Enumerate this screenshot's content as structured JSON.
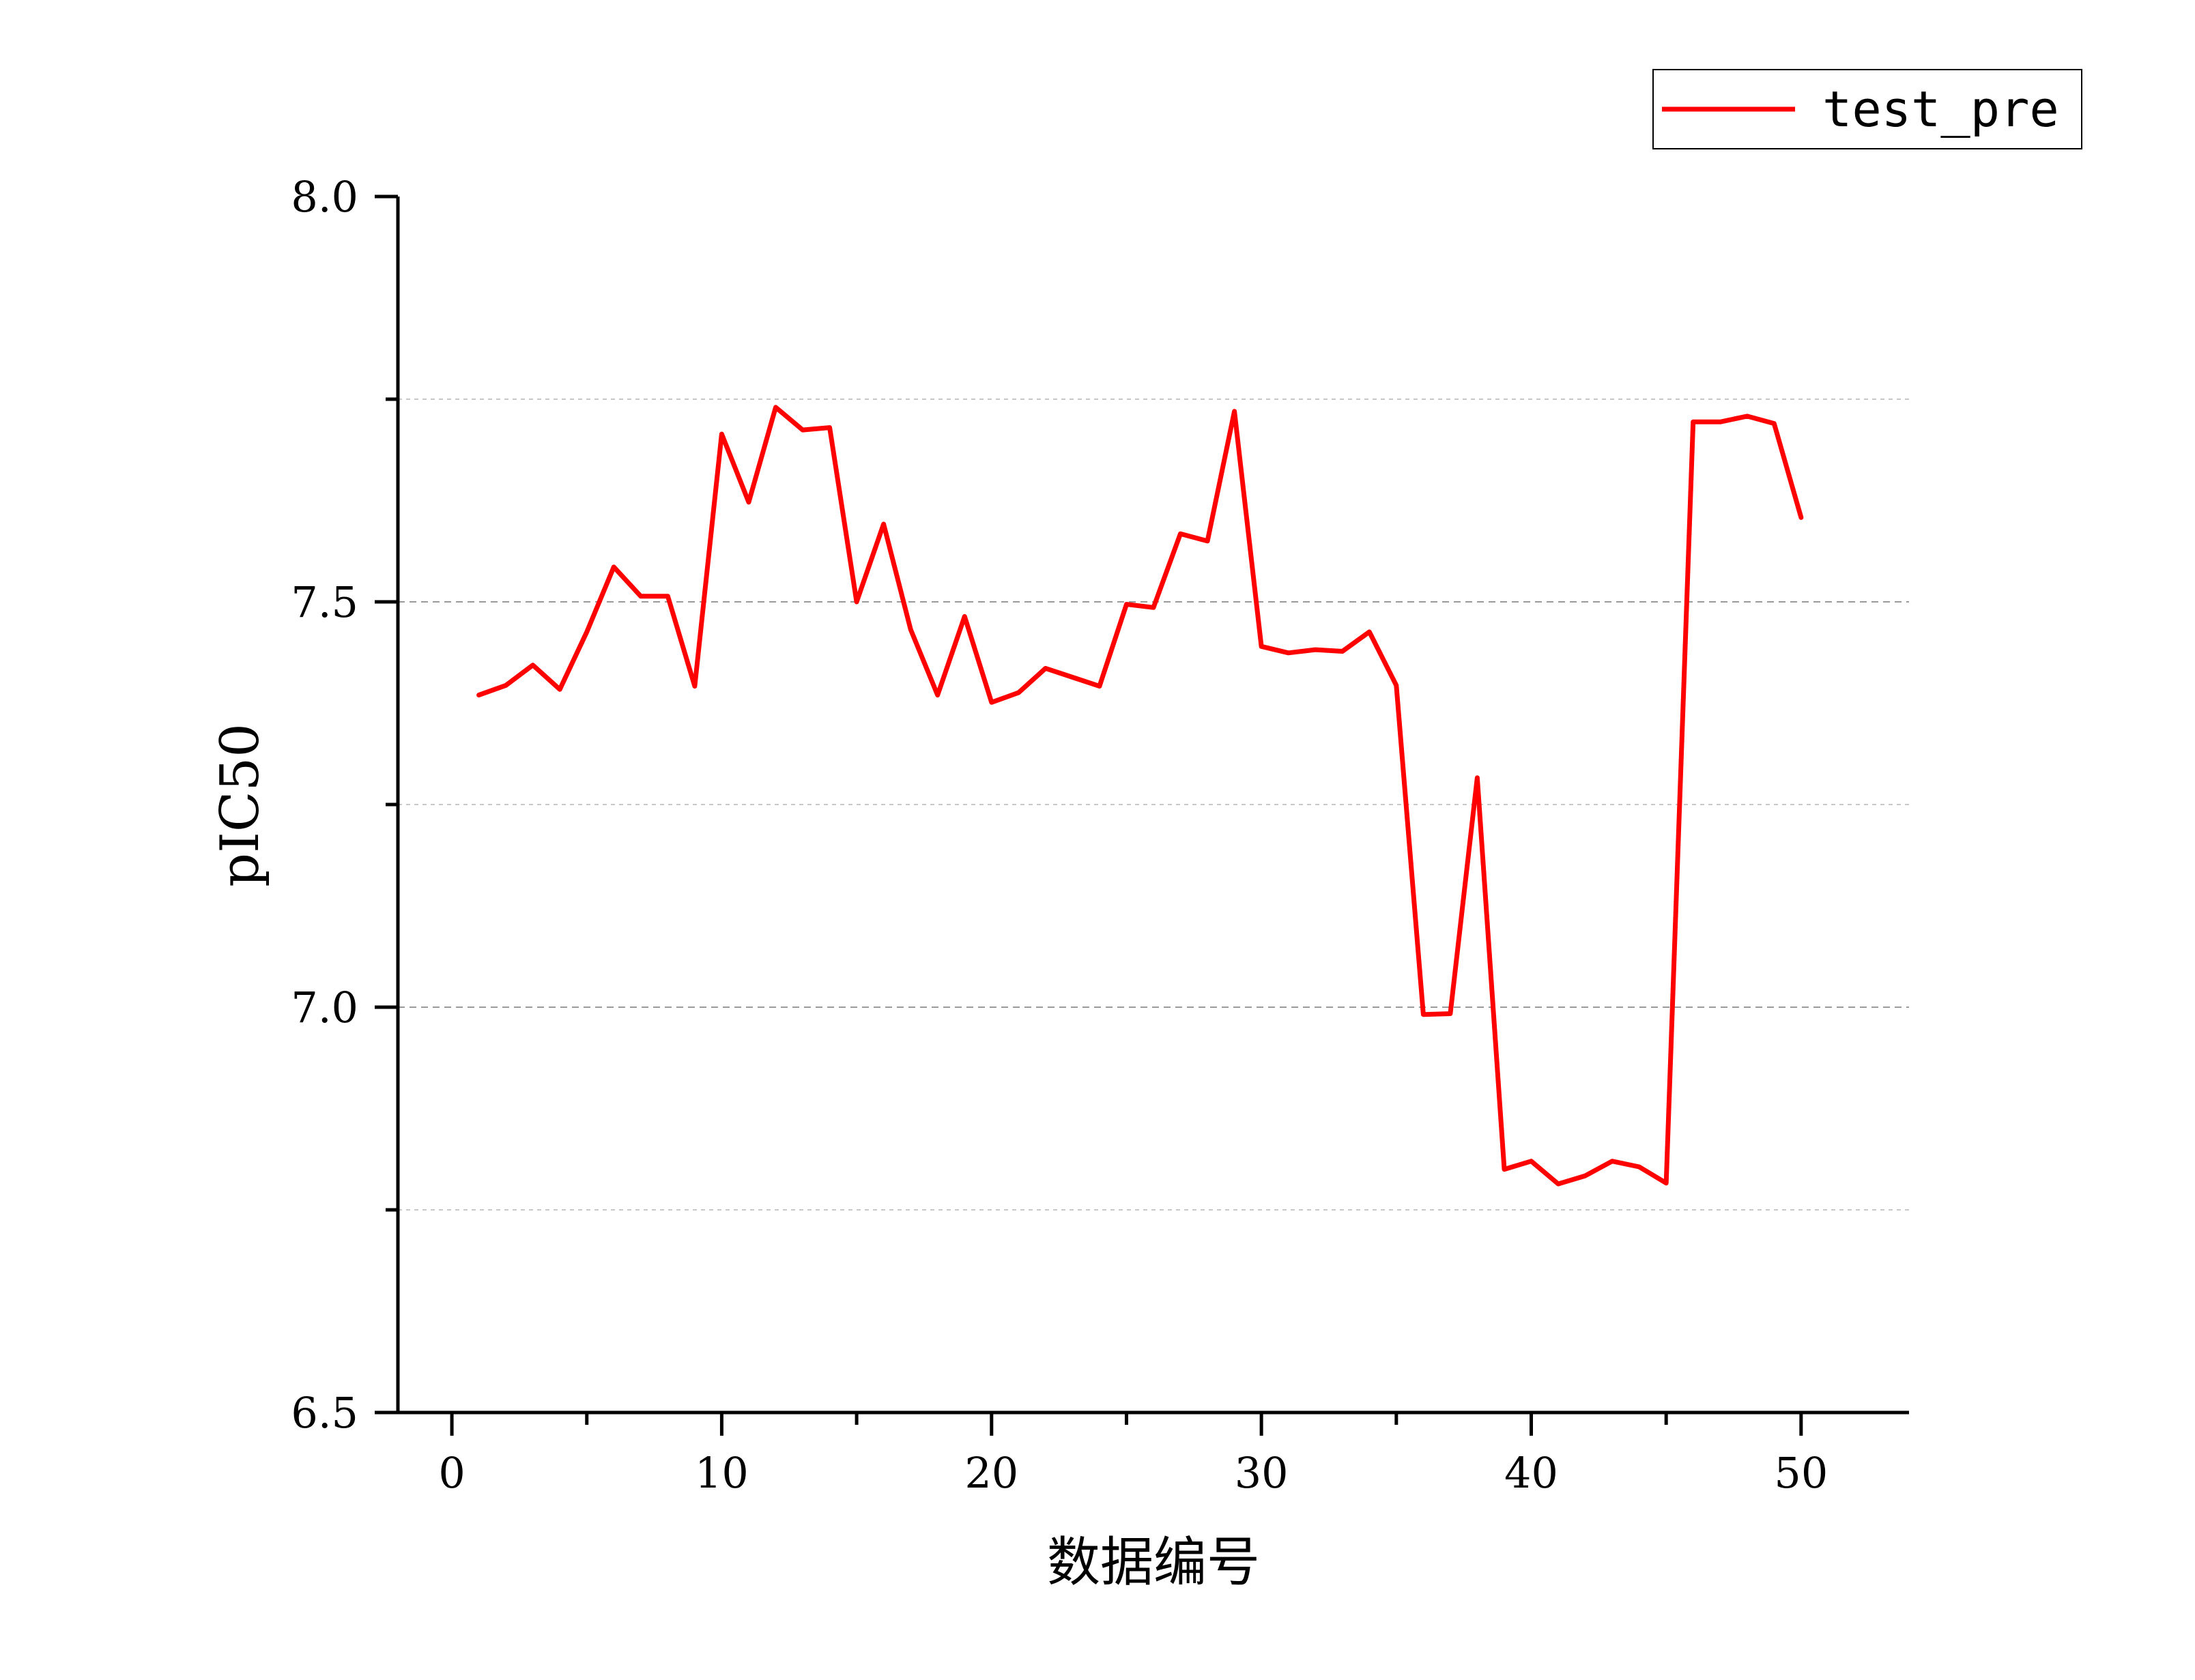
{
  "chart_data": {
    "type": "line",
    "xlabel": "数据编号",
    "ylabel": "pIC50",
    "xlim": [
      -2,
      54
    ],
    "ylim": [
      6.5,
      8.0
    ],
    "x_ticks": [
      0,
      10,
      20,
      30,
      40,
      50
    ],
    "x_tick_labels": [
      "0",
      "10",
      "20",
      "30",
      "40",
      "50"
    ],
    "y_ticks": [
      6.5,
      7.0,
      7.5,
      8.0
    ],
    "y_tick_labels": [
      "6.5",
      "7.0",
      "7.5",
      "8.0"
    ],
    "y_minor_ticks": [
      6.75,
      7.25,
      7.75
    ],
    "grid": true,
    "legend_position": "top-right",
    "series": [
      {
        "name": "test_pre",
        "color": "#ff0000",
        "x": [
          1,
          2,
          3,
          4,
          5,
          6,
          7,
          8,
          9,
          10,
          11,
          12,
          13,
          14,
          15,
          16,
          17,
          18,
          19,
          20,
          21,
          22,
          23,
          24,
          25,
          26,
          27,
          28,
          29,
          30,
          31,
          32,
          33,
          34,
          35,
          36,
          37,
          38,
          39,
          40,
          41,
          42,
          43,
          44,
          45,
          46,
          47,
          48,
          49,
          50
        ],
        "y": [
          7.385,
          7.397,
          7.422,
          7.392,
          7.463,
          7.543,
          7.507,
          7.507,
          7.396,
          7.707,
          7.623,
          7.74,
          7.712,
          7.715,
          7.5,
          7.596,
          7.466,
          7.385,
          7.482,
          7.376,
          7.388,
          7.418,
          7.407,
          7.396,
          7.497,
          7.493,
          7.584,
          7.575,
          7.735,
          7.445,
          7.437,
          7.441,
          7.439,
          7.463,
          7.397,
          6.991,
          6.992,
          7.283,
          6.8,
          6.81,
          6.782,
          6.792,
          6.81,
          6.803,
          6.783,
          7.722,
          7.722,
          7.729,
          7.72,
          7.604
        ]
      }
    ]
  }
}
